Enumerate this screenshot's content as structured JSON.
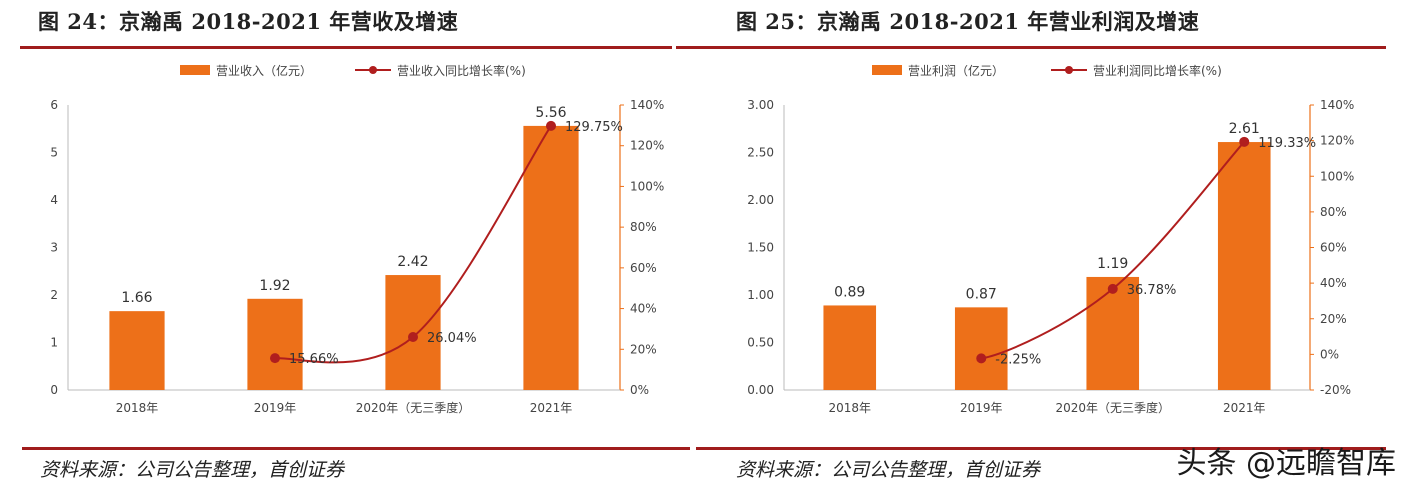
{
  "figures": [
    {
      "title": "图 24：京瀚禹 2018-2021 年营收及增速",
      "source": "资料来源：公司公告整理，首创证券"
    },
    {
      "title": "图 25：京瀚禹 2018-2021 年营业利润及增速",
      "source": "资料来源：公司公告整理，首创证券"
    }
  ],
  "watermark": "头条 @远瞻智库",
  "colors": {
    "bar": "#ED7019",
    "line": "#B01E1E",
    "rule": "#A01C1C"
  },
  "chart_data": [
    {
      "type": "bar",
      "categories": [
        "2018年",
        "2019年",
        "2020年（无三季度）",
        "2021年"
      ],
      "series": [
        {
          "name": "营业收入（亿元）",
          "type": "bar",
          "axis": "left",
          "values": [
            1.66,
            1.92,
            2.42,
            5.56
          ],
          "labels": [
            "1.66",
            "1.92",
            "2.42",
            "5.56"
          ]
        },
        {
          "name": "营业收入同比增长率(%)",
          "type": "line",
          "axis": "right",
          "values": [
            null,
            15.66,
            26.04,
            129.75
          ],
          "labels": [
            "",
            "15.66%",
            "26.04%",
            "129.75%"
          ]
        }
      ],
      "left_axis": {
        "ylim": [
          0,
          6
        ],
        "ticks": [
          "0",
          "1",
          "2",
          "3",
          "4",
          "5",
          "6"
        ]
      },
      "right_axis": {
        "ylim": [
          0,
          140
        ],
        "ticks": [
          "0%",
          "20%",
          "40%",
          "60%",
          "80%",
          "100%",
          "120%",
          "140%"
        ]
      },
      "legend": "top",
      "grid": false
    },
    {
      "type": "bar",
      "categories": [
        "2018年",
        "2019年",
        "2020年（无三季度）",
        "2021年"
      ],
      "series": [
        {
          "name": "营业利润（亿元）",
          "type": "bar",
          "axis": "left",
          "values": [
            0.89,
            0.87,
            1.19,
            2.61
          ],
          "labels": [
            "0.89",
            "0.87",
            "1.19",
            "2.61"
          ]
        },
        {
          "name": "营业利润同比增长率(%)",
          "type": "line",
          "axis": "right",
          "values": [
            null,
            -2.25,
            36.78,
            119.33
          ],
          "labels": [
            "",
            "-2.25%",
            "36.78%",
            "119.33%"
          ]
        }
      ],
      "left_axis": {
        "ylim": [
          0,
          3
        ],
        "ticks": [
          "0.00",
          "0.50",
          "1.00",
          "1.50",
          "2.00",
          "2.50",
          "3.00"
        ]
      },
      "right_axis": {
        "ylim": [
          -20,
          140
        ],
        "ticks": [
          "-20%",
          "0%",
          "20%",
          "40%",
          "60%",
          "80%",
          "100%",
          "120%",
          "140%"
        ]
      },
      "legend": "top",
      "grid": false
    }
  ]
}
